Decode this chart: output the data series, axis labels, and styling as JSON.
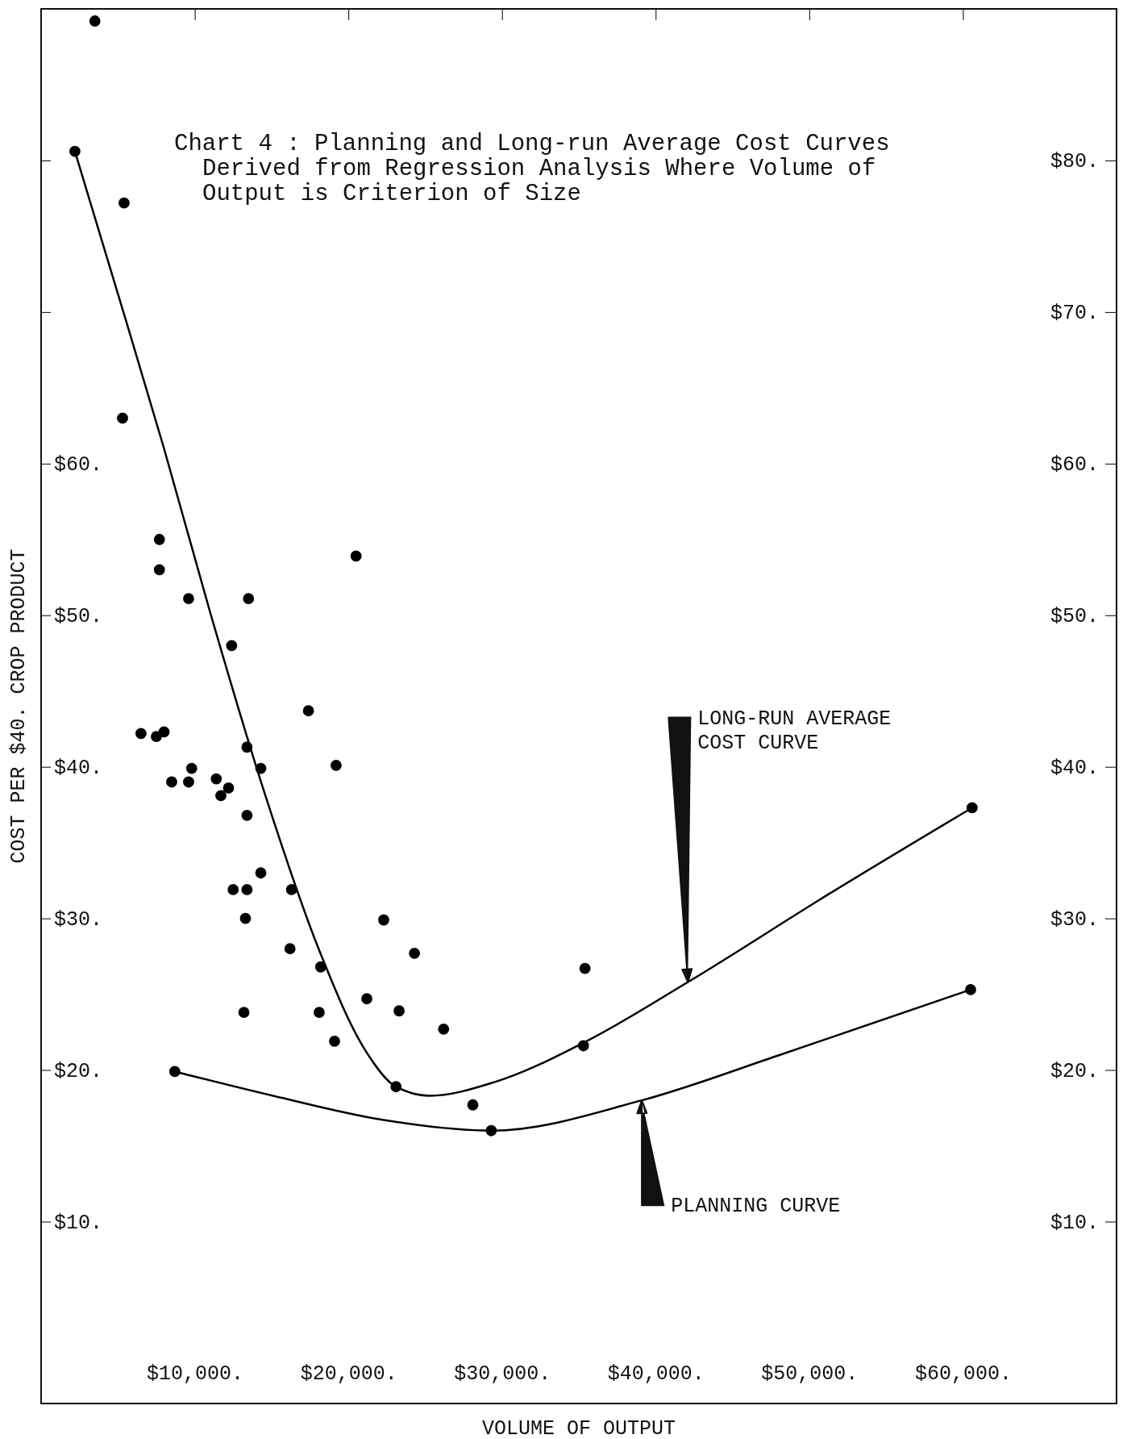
{
  "chart_data": {
    "type": "scatter",
    "title": "Chart 4 : Planning and Long-run Average Cost Curves\nDerived from Regression Analysis Where Volume of\nOutput is Criterion of Size",
    "xlabel": "VOLUME OF OUTPUT",
    "ylabel": "COST PER $40. CROP PRODUCT",
    "xlim": [
      0,
      70000
    ],
    "ylim": [
      -2,
      90
    ],
    "y2lim": [
      -2,
      90
    ],
    "xticks": [
      {
        "value": 10000,
        "label": "$10,000."
      },
      {
        "value": 20000,
        "label": "$20,000."
      },
      {
        "value": 30000,
        "label": "$30,000."
      },
      {
        "value": 40000,
        "label": "$40,000."
      },
      {
        "value": 50000,
        "label": "$50,000."
      },
      {
        "value": 60000,
        "label": "$60,000."
      }
    ],
    "yticks": [
      {
        "value": 10,
        "label": "$10."
      },
      {
        "value": 20,
        "label": "$20."
      },
      {
        "value": 30,
        "label": "$30."
      },
      {
        "value": 40,
        "label": "$40."
      },
      {
        "value": 50,
        "label": "$50."
      },
      {
        "value": 60,
        "label": "$60."
      },
      {
        "value": 70,
        "label": null
      },
      {
        "value": 80,
        "label": null
      }
    ],
    "y2ticks": [
      {
        "value": 10,
        "label": "$10."
      },
      {
        "value": 20,
        "label": "$20."
      },
      {
        "value": 30,
        "label": "$30."
      },
      {
        "value": 40,
        "label": "$40."
      },
      {
        "value": 50,
        "label": "$50."
      },
      {
        "value": 60,
        "label": "$60."
      },
      {
        "value": 70,
        "label": "$70."
      },
      {
        "value": 80,
        "label": "$80."
      }
    ],
    "grid": false,
    "marker": "circle",
    "series": [
      {
        "color": "#000000",
        "x": [
          3500,
          2200,
          5400,
          5300,
          7700,
          7700,
          9600,
          13500,
          20500,
          12400,
          6500,
          7500,
          8000,
          17400,
          13400,
          9800,
          14300,
          19200,
          8500,
          9600,
          11400,
          12200,
          11700,
          13400,
          14300,
          12500,
          13400,
          16300,
          13300,
          22300,
          16200,
          24300,
          18200,
          35400,
          21200,
          13200,
          18100,
          23300,
          26200,
          19100,
          35300,
          60600,
          60500,
          8700,
          23100,
          28100,
          29300
        ],
        "values": [
          89.2,
          80.6,
          77.2,
          63.0,
          55.0,
          53.0,
          51.1,
          51.1,
          53.9,
          48.0,
          42.2,
          42.0,
          42.3,
          43.7,
          41.3,
          39.9,
          39.9,
          40.1,
          39.0,
          39.0,
          39.2,
          38.6,
          38.1,
          36.8,
          33.0,
          31.9,
          31.9,
          31.9,
          30.0,
          29.9,
          28.0,
          27.7,
          26.8,
          26.7,
          24.7,
          23.8,
          23.8,
          23.9,
          22.7,
          21.9,
          21.6,
          37.3,
          25.3,
          19.9,
          18.9,
          17.7,
          16.0
        ]
      },
      {
        "type": "line",
        "color": "#000000",
        "marker": "none",
        "line_style": "solid",
        "x": [
          2200,
          5000,
          8000,
          11000,
          14600,
          18100,
          21100,
          23100,
          25300,
          29500,
          35500,
          42100,
          51100,
          60600
        ],
        "values": [
          80.6,
          71.2,
          61.0,
          50.2,
          38.1,
          27.9,
          21.3,
          18.9,
          18.3,
          19.2,
          21.9,
          25.8,
          31.5,
          37.3
        ]
      },
      {
        "type": "line",
        "color": "#000000",
        "marker": "none",
        "line_style": "solid",
        "x": [
          8700,
          15100,
          22300,
          29300,
          39100,
          48100,
          60500
        ],
        "values": [
          19.9,
          18.3,
          16.7,
          16.0,
          18.0,
          21.0,
          25.3
        ]
      }
    ],
    "annotations": [
      {
        "text": "LONG-RUN AVERAGE\nCOST CURVE",
        "x": 42100,
        "y": 25.8
      },
      {
        "text": "PLANNING CURVE",
        "x": 39100,
        "y": 18.0
      }
    ]
  }
}
